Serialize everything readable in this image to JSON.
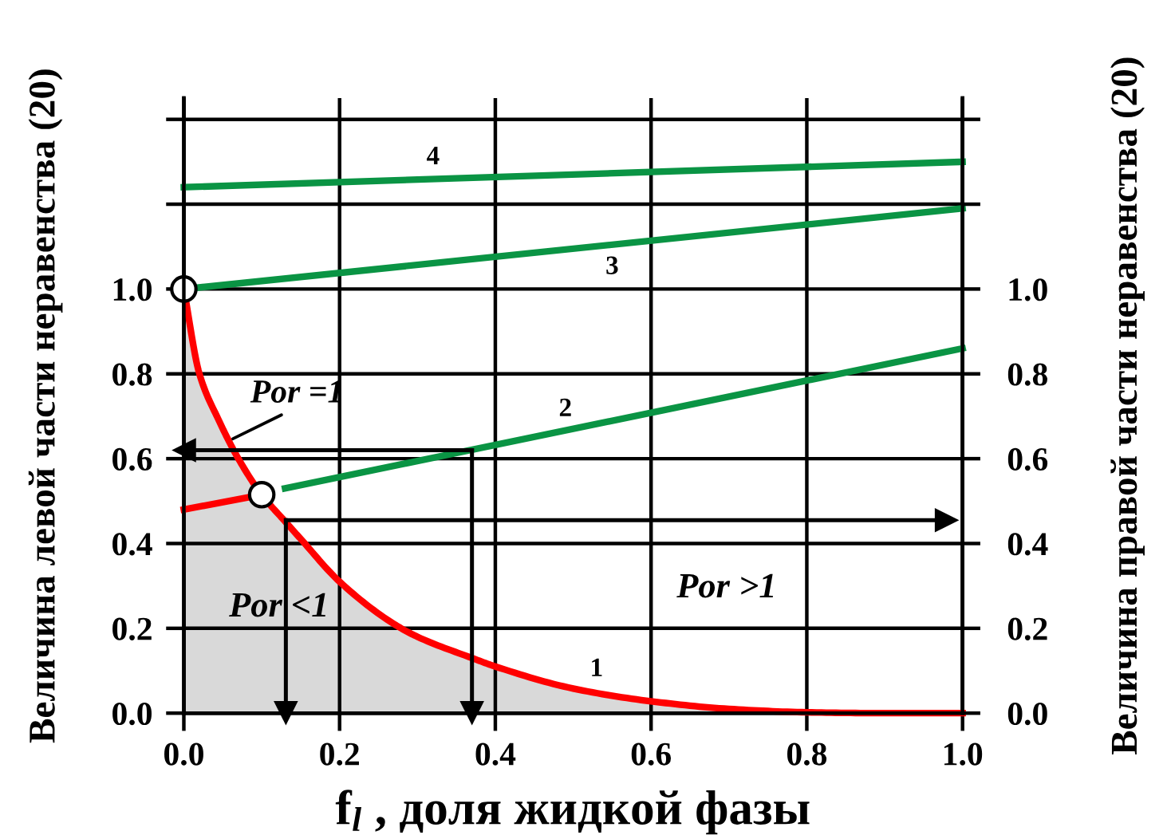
{
  "chart_data": {
    "type": "line",
    "xlabel": "f$_{l}$ , доля жидкой фазы",
    "ylabel": "Величина левой части неравенства (20)",
    "y2label": "Величина правой части неравенства (20)",
    "xlim": [
      0,
      1.0
    ],
    "xticks": [
      {
        "value": 0,
        "label": "0.0"
      },
      {
        "value": 0.2,
        "label": "0.2"
      },
      {
        "value": 0.4,
        "label": "0.4"
      },
      {
        "value": 0.6,
        "label": "0.6"
      },
      {
        "value": 0.8,
        "label": "0.8"
      },
      {
        "value": 1.0,
        "label": "1.0"
      }
    ],
    "ylim": [
      0,
      1.45
    ],
    "yticks": [
      {
        "value": 0,
        "label": "0.0"
      },
      {
        "value": 0.2,
        "label": "0.2"
      },
      {
        "value": 0.4,
        "label": "0.4"
      },
      {
        "value": 0.6,
        "label": "0.6"
      },
      {
        "value": 0.8,
        "label": "0.8"
      },
      {
        "value": 1.0,
        "label": "1.0"
      },
      {
        "value": 1.2,
        "label": null
      },
      {
        "value": 1.4,
        "label": null
      }
    ],
    "y2lim": [
      0,
      1.45
    ],
    "y2ticks": [
      {
        "value": 0,
        "label": "0.0"
      },
      {
        "value": 0.2,
        "label": "0.2"
      },
      {
        "value": 0.4,
        "label": "0.4"
      },
      {
        "value": 0.6,
        "label": "0.6"
      },
      {
        "value": 0.8,
        "label": "0.8"
      },
      {
        "value": 1.0,
        "label": "1.0"
      },
      {
        "value": 1.2,
        "label": null
      },
      {
        "value": 1.4,
        "label": null
      }
    ],
    "grid": true,
    "series": [
      {
        "type": "area",
        "color": "#ff0000",
        "x": [
          0,
          0.02,
          0.045,
          0.07,
          0.1,
          0.131,
          0.149,
          0.2,
          0.27,
          0.3,
          0.37,
          0.4,
          0.5,
          0.6,
          0.7,
          0.8,
          0.9,
          1.0
        ],
        "values": [
          1.0,
          0.8,
          0.69,
          0.6,
          0.515,
          0.45,
          0.413,
          0.31,
          0.21,
          0.18,
          0.13,
          0.11,
          0.058,
          0.028,
          0.01,
          0.002,
          0.0,
          0.0
        ]
      },
      {
        "color": "#ff0000",
        "x": [
          0,
          0.1
        ],
        "values": [
          0.48,
          0.515
        ]
      },
      {
        "color": "#0a9444",
        "x": [
          0.13,
          1.0
        ],
        "values": [
          0.53,
          0.86
        ]
      },
      {
        "color": "#0a9444",
        "x": [
          0,
          1.0
        ],
        "values": [
          1.0,
          1.19
        ]
      },
      {
        "color": "#0a9444",
        "x": [
          0,
          1.0
        ],
        "values": [
          1.24,
          1.3
        ]
      },
      {
        "color": "#000000",
        "marker": "triangle",
        "x": [
          0.37,
          0
        ],
        "values": [
          0.62,
          0.62
        ]
      },
      {
        "color": "#000000",
        "marker": "triangle",
        "x": [
          0.37,
          0.37
        ],
        "values": [
          0.62,
          0
        ]
      },
      {
        "color": "#000000",
        "marker": "triangle",
        "x": [
          0.131,
          0.131
        ],
        "values": [
          0.455,
          0
        ]
      },
      {
        "color": "#000000",
        "marker": "triangle",
        "x": [
          0.131,
          0.98
        ],
        "values": [
          0.455,
          0.455
        ]
      },
      {
        "type": "scatter",
        "marker": "circle",
        "color": "#000000",
        "x": [
          0,
          0.1
        ],
        "values": [
          1.0,
          0.515
        ]
      }
    ],
    "annotations": [
      {
        "text": "4",
        "x": 0.32,
        "y": 1.26
      },
      {
        "text": "3",
        "x": 0.55,
        "y": 1.105
      },
      {
        "text": "2",
        "x": 0.49,
        "y": 0.666
      },
      {
        "text": "1",
        "x": 0.53,
        "y": 0.048
      },
      {
        "text": "Por =1",
        "x": 0.063,
        "y": 0.647
      },
      "Por <1",
      "Por >1"
    ]
  }
}
